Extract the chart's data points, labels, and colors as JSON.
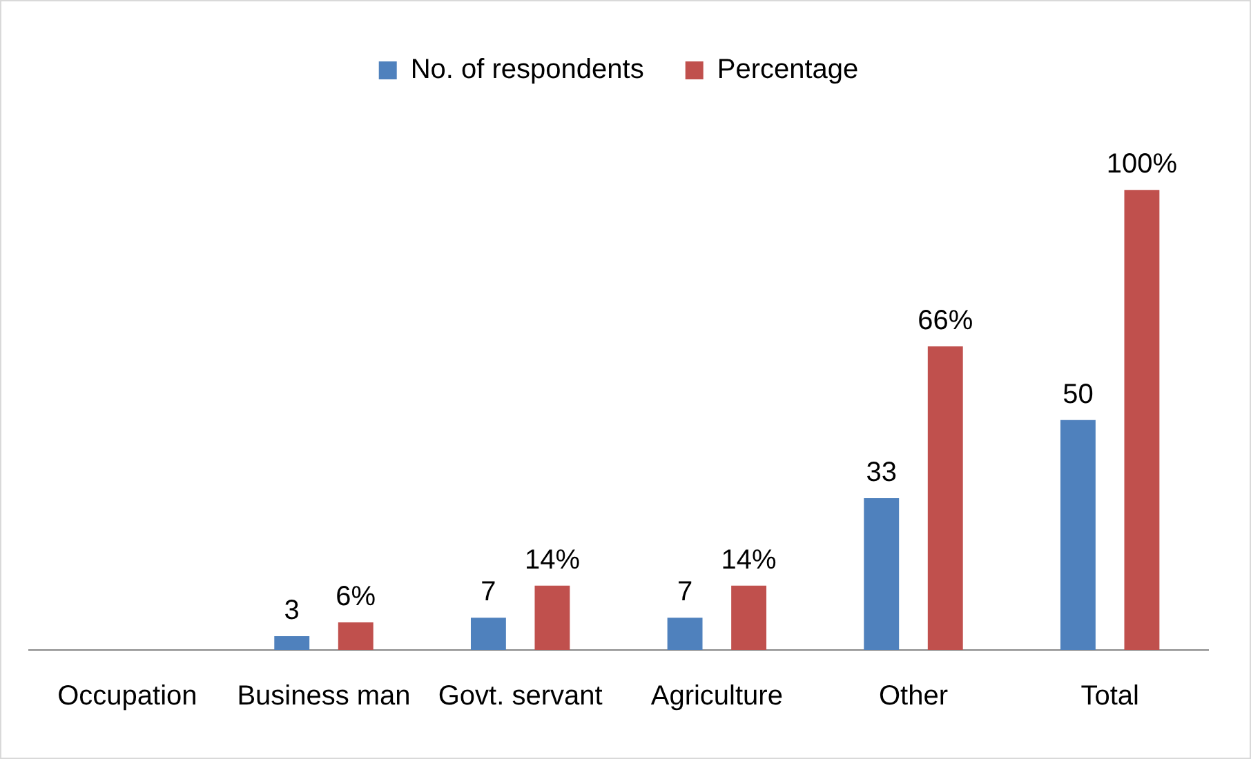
{
  "chart_data": {
    "type": "bar",
    "categories": [
      "Occupation",
      "Business man",
      "Govt. servant",
      "Agriculture",
      "Other",
      "Total"
    ],
    "series": [
      {
        "name": "No. of respondents",
        "color": "#4f81bd",
        "values": [
          null,
          3,
          7,
          7,
          33,
          50
        ],
        "value_labels": [
          null,
          "3",
          "7",
          "7",
          "33",
          "50"
        ]
      },
      {
        "name": "Percentage",
        "color": "#c0504d",
        "values": [
          null,
          6,
          14,
          14,
          66,
          100
        ],
        "value_labels": [
          null,
          "6%",
          "14%",
          "14%",
          "66%",
          "100%"
        ]
      }
    ],
    "legend": "top",
    "grid": false,
    "tick_labels": "x"
  }
}
